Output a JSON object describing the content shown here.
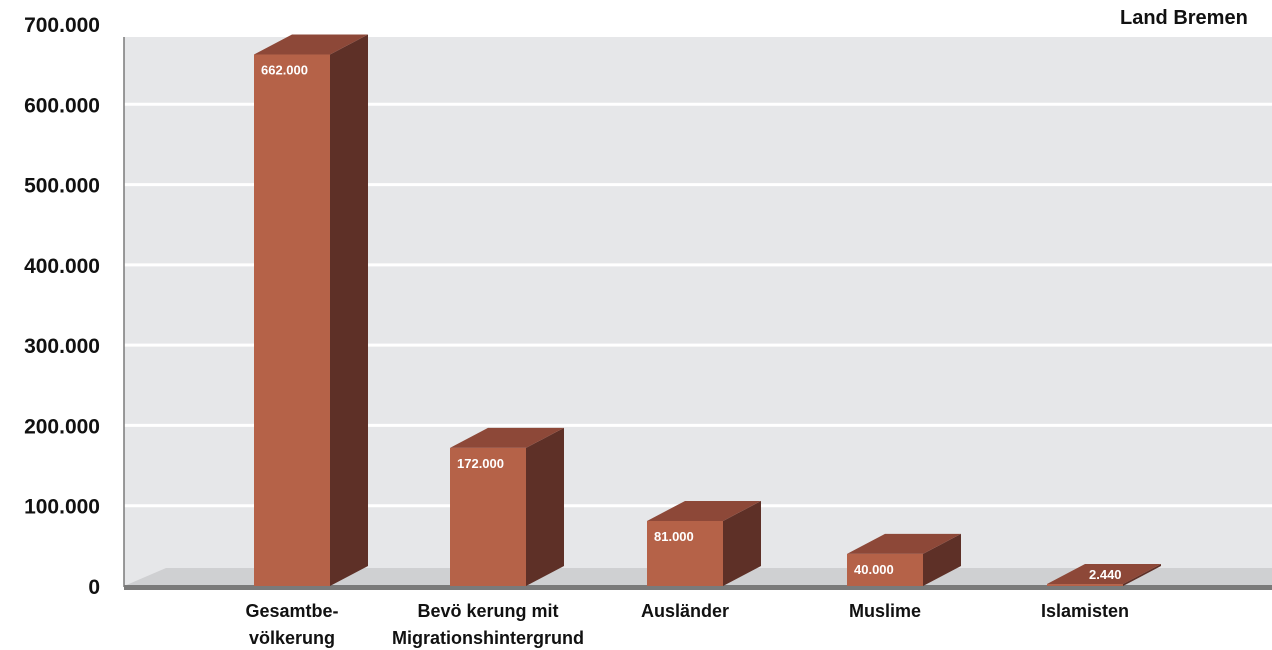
{
  "chart_data": {
    "type": "bar",
    "title": "Land Bremen",
    "categories": [
      "Gesamtbe-\nvölkerung",
      "Bevö kerung mit\nMigrationshintergrund",
      "Ausländer",
      "Muslime",
      "Islamisten"
    ],
    "values": [
      662000,
      172000,
      81000,
      40000,
      2440
    ],
    "value_labels": [
      "662.000",
      "172.000",
      "81.000",
      "40.000",
      "2.440"
    ],
    "yticks": [
      0,
      100000,
      200000,
      300000,
      400000,
      500000,
      600000,
      700000
    ],
    "ytick_labels": [
      "0",
      "100.000",
      "200.000",
      "300.000",
      "400.000",
      "500.000",
      "600.000",
      "700.000"
    ],
    "ylim": [
      0,
      700000
    ],
    "grid": true,
    "colors": {
      "bar_front": "#b56248",
      "bar_side": "#5e3027",
      "bar_top": "#8d4838",
      "plot_bg": "#e6e7e9",
      "floor": "#cfd0d2",
      "axis": "#7a7a7a",
      "grid": "#ffffff"
    }
  }
}
